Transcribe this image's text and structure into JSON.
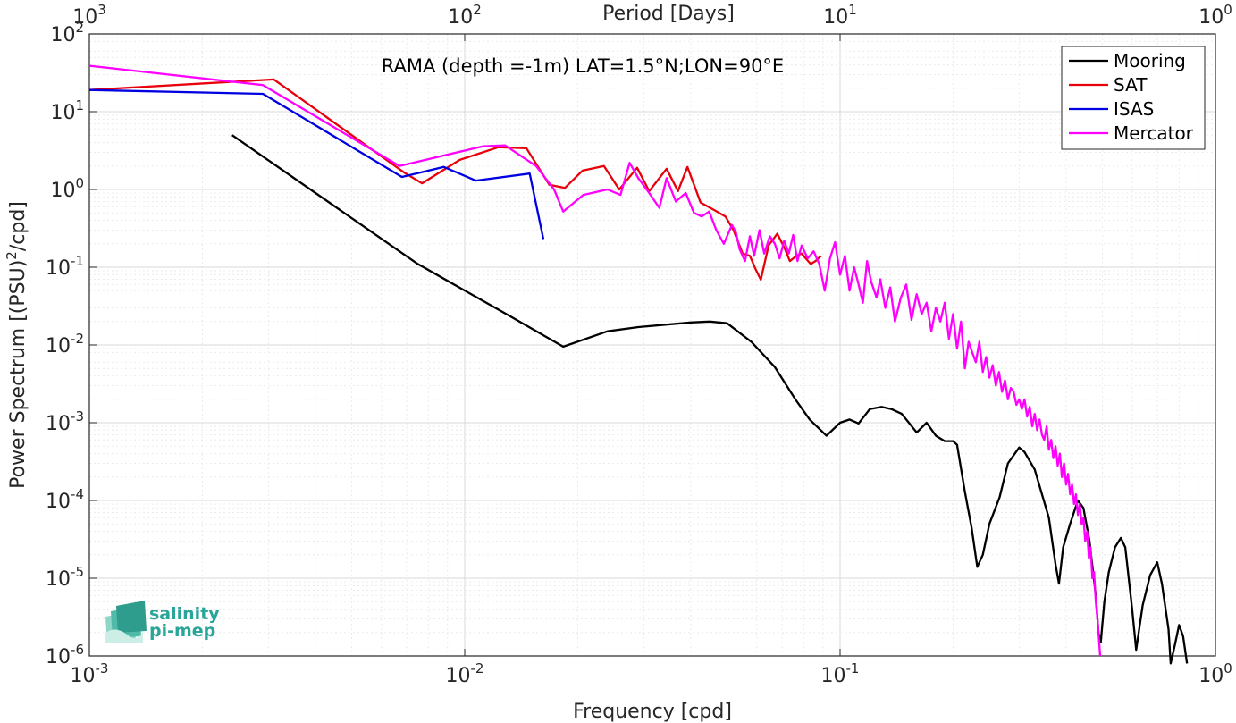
{
  "chart_data": {
    "type": "line",
    "xscale": "log",
    "yscale": "log",
    "xlim": [
      0.001,
      1
    ],
    "ylim": [
      1e-06,
      100
    ],
    "grid": true,
    "minor_grid": true,
    "xlabel": "Frequency [cpd]",
    "ylabel_parts": [
      "Power Spectrum [(PSU)",
      "2",
      "/cpd]"
    ],
    "top_axis_label": "Period [Days]",
    "annotation": "RAMA (depth =-1m) LAT=1.5°N;LON=90°E",
    "legend_position": "top-right",
    "x_ticks": [
      {
        "value": 0.001,
        "base": "10",
        "exp": "-3"
      },
      {
        "value": 0.01,
        "base": "10",
        "exp": "-2"
      },
      {
        "value": 0.1,
        "base": "10",
        "exp": "-1"
      },
      {
        "value": 1,
        "base": "10",
        "exp": "0"
      }
    ],
    "top_ticks": [
      {
        "value": 0.001,
        "base": "10",
        "exp": "3"
      },
      {
        "value": 0.01,
        "base": "10",
        "exp": "2"
      },
      {
        "value": 0.1,
        "base": "10",
        "exp": "1"
      },
      {
        "value": 1,
        "base": "10",
        "exp": "0"
      }
    ],
    "y_ticks": [
      {
        "value": 100,
        "base": "10",
        "exp": "2"
      },
      {
        "value": 10,
        "base": "10",
        "exp": "1"
      },
      {
        "value": 1,
        "base": "10",
        "exp": "0"
      },
      {
        "value": 0.1,
        "base": "10",
        "exp": "-1"
      },
      {
        "value": 0.01,
        "base": "10",
        "exp": "-2"
      },
      {
        "value": 0.001,
        "base": "10",
        "exp": "-3"
      },
      {
        "value": 0.0001,
        "base": "10",
        "exp": "-4"
      },
      {
        "value": 1e-05,
        "base": "10",
        "exp": "-5"
      },
      {
        "value": 1e-06,
        "base": "10",
        "exp": "-6"
      }
    ],
    "series": [
      {
        "name": "Mooring",
        "color": "#000000",
        "points": [
          [
            0.0024,
            5.0
          ],
          [
            0.0075,
            0.11
          ],
          [
            0.0133,
            0.023
          ],
          [
            0.0183,
            0.0095
          ],
          [
            0.024,
            0.015
          ],
          [
            0.029,
            0.017
          ],
          [
            0.04,
            0.0195
          ],
          [
            0.045,
            0.02
          ],
          [
            0.05,
            0.019
          ],
          [
            0.058,
            0.011
          ],
          [
            0.067,
            0.0052
          ],
          [
            0.076,
            0.002
          ],
          [
            0.083,
            0.0011
          ],
          [
            0.092,
            0.00068
          ],
          [
            0.1,
            0.001
          ],
          [
            0.106,
            0.0011
          ],
          [
            0.112,
            0.00098
          ],
          [
            0.12,
            0.0015
          ],
          [
            0.129,
            0.0016
          ],
          [
            0.137,
            0.0015
          ],
          [
            0.146,
            0.0013
          ],
          [
            0.16,
            0.00075
          ],
          [
            0.17,
            0.001
          ],
          [
            0.18,
            0.00068
          ],
          [
            0.19,
            0.00058
          ],
          [
            0.2,
            0.00058
          ],
          [
            0.205,
            0.00052
          ],
          [
            0.215,
            0.00013
          ],
          [
            0.224,
            4.5e-05
          ],
          [
            0.232,
            1.4e-05
          ],
          [
            0.24,
            2e-05
          ],
          [
            0.25,
            5e-05
          ],
          [
            0.266,
            0.00011
          ],
          [
            0.28,
            0.0003
          ],
          [
            0.3,
            0.00048
          ],
          [
            0.31,
            0.00042
          ],
          [
            0.33,
            0.00025
          ],
          [
            0.36,
            6e-05
          ],
          [
            0.375,
            1.5e-05
          ],
          [
            0.383,
            8.5e-06
          ],
          [
            0.393,
            2.5e-05
          ],
          [
            0.41,
            5e-05
          ],
          [
            0.43,
            0.0001
          ],
          [
            0.445,
            8e-05
          ],
          [
            0.462,
            3e-05
          ],
          [
            0.48,
            6e-06
          ],
          [
            0.488,
            2e-06
          ],
          [
            0.495,
            1.5e-06
          ],
          [
            0.506,
            5e-06
          ],
          [
            0.52,
            1.2e-05
          ],
          [
            0.54,
            2.5e-05
          ],
          [
            0.56,
            3.3e-05
          ],
          [
            0.575,
            2.5e-05
          ],
          [
            0.6,
            4e-06
          ],
          [
            0.615,
            1.2e-06
          ],
          [
            0.64,
            4.5e-06
          ],
          [
            0.67,
            1.1e-05
          ],
          [
            0.7,
            1.6e-05
          ],
          [
            0.72,
            8.5e-06
          ],
          [
            0.75,
            2.2e-06
          ],
          [
            0.76,
            8e-07
          ],
          [
            0.78,
            1.4e-06
          ],
          [
            0.8,
            2.5e-06
          ],
          [
            0.82,
            1.8e-06
          ],
          [
            0.84,
            8e-07
          ]
        ]
      },
      {
        "name": "SAT",
        "color": "#e8000b",
        "points": [
          [
            0.001,
            19
          ],
          [
            0.0031,
            26
          ],
          [
            0.0058,
            3.0
          ],
          [
            0.0069,
            1.65
          ],
          [
            0.0077,
            1.2
          ],
          [
            0.0097,
            2.4
          ],
          [
            0.0123,
            3.5
          ],
          [
            0.0146,
            3.4
          ],
          [
            0.0168,
            1.15
          ],
          [
            0.0185,
            1.05
          ],
          [
            0.0206,
            1.75
          ],
          [
            0.0235,
            2.0
          ],
          [
            0.0258,
            1.0
          ],
          [
            0.0288,
            1.9
          ],
          [
            0.031,
            0.95
          ],
          [
            0.0345,
            1.85
          ],
          [
            0.037,
            0.95
          ],
          [
            0.0392,
            1.95
          ],
          [
            0.0425,
            0.68
          ],
          [
            0.046,
            0.55
          ],
          [
            0.0495,
            0.45
          ],
          [
            0.052,
            0.3
          ],
          [
            0.055,
            0.15
          ],
          [
            0.0575,
            0.14
          ],
          [
            0.0595,
            0.095
          ],
          [
            0.0615,
            0.069
          ],
          [
            0.0645,
            0.19
          ],
          [
            0.068,
            0.27
          ],
          [
            0.071,
            0.18
          ],
          [
            0.0735,
            0.12
          ],
          [
            0.0765,
            0.14
          ],
          [
            0.079,
            0.15
          ],
          [
            0.081,
            0.13
          ],
          [
            0.0835,
            0.11
          ],
          [
            0.086,
            0.12
          ],
          [
            0.089,
            0.14
          ]
        ]
      },
      {
        "name": "ISAS",
        "color": "#0000e0",
        "points": [
          [
            0.001,
            19
          ],
          [
            0.0029,
            17
          ],
          [
            0.0068,
            1.45
          ],
          [
            0.0088,
            1.95
          ],
          [
            0.0107,
            1.3
          ],
          [
            0.0149,
            1.6
          ],
          [
            0.0162,
            0.23
          ]
        ]
      },
      {
        "name": "Mercator",
        "color": "#ff00ff",
        "points": [
          [
            0.001,
            39
          ],
          [
            0.0029,
            22
          ],
          [
            0.0067,
            2.0
          ],
          [
            0.0112,
            3.6
          ],
          [
            0.0128,
            3.7
          ],
          [
            0.0155,
            2.0
          ],
          [
            0.0173,
            1.0
          ],
          [
            0.0183,
            0.52
          ],
          [
            0.0207,
            0.85
          ],
          [
            0.024,
            1.0
          ],
          [
            0.026,
            0.85
          ],
          [
            0.0275,
            2.2
          ],
          [
            0.029,
            1.4
          ],
          [
            0.031,
            0.9
          ],
          [
            0.033,
            0.58
          ],
          [
            0.0345,
            1.4
          ],
          [
            0.0365,
            0.7
          ],
          [
            0.0388,
            0.9
          ],
          [
            0.0408,
            0.5
          ],
          [
            0.0428,
            0.45
          ],
          [
            0.0448,
            0.52
          ],
          [
            0.0468,
            0.3
          ],
          [
            0.049,
            0.2
          ],
          [
            0.0515,
            0.35
          ],
          [
            0.0528,
            0.28
          ],
          [
            0.054,
            0.17
          ],
          [
            0.0558,
            0.12
          ],
          [
            0.0575,
            0.25
          ],
          [
            0.059,
            0.14
          ],
          [
            0.061,
            0.3
          ],
          [
            0.0628,
            0.15
          ],
          [
            0.065,
            0.25
          ],
          [
            0.067,
            0.2
          ],
          [
            0.069,
            0.13
          ],
          [
            0.071,
            0.22
          ],
          [
            0.073,
            0.15
          ],
          [
            0.075,
            0.26
          ],
          [
            0.077,
            0.12
          ],
          [
            0.079,
            0.19
          ],
          [
            0.082,
            0.13
          ],
          [
            0.085,
            0.16
          ],
          [
            0.088,
            0.11
          ],
          [
            0.091,
            0.05
          ],
          [
            0.094,
            0.13
          ],
          [
            0.097,
            0.21
          ],
          [
            0.1,
            0.08
          ],
          [
            0.103,
            0.14
          ],
          [
            0.106,
            0.05
          ],
          [
            0.109,
            0.1
          ],
          [
            0.112,
            0.06
          ],
          [
            0.115,
            0.035
          ],
          [
            0.118,
            0.12
          ],
          [
            0.121,
            0.065
          ],
          [
            0.125,
            0.041
          ],
          [
            0.128,
            0.07
          ],
          [
            0.132,
            0.03
          ],
          [
            0.136,
            0.055
          ],
          [
            0.14,
            0.02
          ],
          [
            0.145,
            0.04
          ],
          [
            0.15,
            0.06
          ],
          [
            0.155,
            0.021
          ],
          [
            0.16,
            0.045
          ],
          [
            0.165,
            0.025
          ],
          [
            0.17,
            0.035
          ],
          [
            0.175,
            0.015
          ],
          [
            0.18,
            0.03
          ],
          [
            0.185,
            0.02
          ],
          [
            0.19,
            0.035
          ],
          [
            0.195,
            0.012
          ],
          [
            0.2,
            0.025
          ],
          [
            0.205,
            0.009
          ],
          [
            0.21,
            0.02
          ],
          [
            0.215,
            0.005
          ],
          [
            0.22,
            0.011
          ],
          [
            0.225,
            0.008
          ],
          [
            0.23,
            0.006
          ],
          [
            0.235,
            0.011
          ],
          [
            0.24,
            0.0045
          ],
          [
            0.245,
            0.007
          ],
          [
            0.25,
            0.0038
          ],
          [
            0.255,
            0.0055
          ],
          [
            0.26,
            0.003
          ],
          [
            0.265,
            0.0045
          ],
          [
            0.27,
            0.0025
          ],
          [
            0.275,
            0.0035
          ],
          [
            0.28,
            0.002
          ],
          [
            0.285,
            0.0028
          ],
          [
            0.29,
            0.0025
          ],
          [
            0.295,
            0.0017
          ],
          [
            0.3,
            0.002
          ],
          [
            0.305,
            0.0015
          ],
          [
            0.31,
            0.002
          ],
          [
            0.315,
            0.0012
          ],
          [
            0.32,
            0.0016
          ],
          [
            0.325,
            0.0009
          ],
          [
            0.33,
            0.0013
          ],
          [
            0.335,
            0.0008
          ],
          [
            0.34,
            0.0011
          ],
          [
            0.345,
            0.0007
          ],
          [
            0.35,
            0.0006
          ],
          [
            0.355,
            0.0009
          ],
          [
            0.36,
            0.00045
          ],
          [
            0.365,
            0.0006
          ],
          [
            0.37,
            0.00035
          ],
          [
            0.375,
            0.0005
          ],
          [
            0.38,
            0.00028
          ],
          [
            0.385,
            0.0004
          ],
          [
            0.39,
            0.0002
          ],
          [
            0.395,
            0.0003
          ],
          [
            0.4,
            0.00016
          ],
          [
            0.405,
            0.00022
          ],
          [
            0.41,
            0.00012
          ],
          [
            0.415,
            0.00016
          ],
          [
            0.42,
            9e-05
          ],
          [
            0.425,
            0.00012
          ],
          [
            0.43,
            6.5e-05
          ],
          [
            0.435,
            9e-05
          ],
          [
            0.44,
            5e-05
          ],
          [
            0.445,
            6e-05
          ],
          [
            0.45,
            3e-05
          ],
          [
            0.455,
            4e-05
          ],
          [
            0.46,
            1.8e-05
          ],
          [
            0.465,
            2.5e-05
          ],
          [
            0.47,
            1e-05
          ],
          [
            0.475,
            1.2e-05
          ],
          [
            0.48,
            5e-06
          ],
          [
            0.485,
            3e-06
          ],
          [
            0.49,
            1.5e-06
          ],
          [
            0.493,
            1e-06
          ]
        ]
      }
    ]
  },
  "logo": {
    "line1": "salinity",
    "line2": "pi-mep"
  }
}
